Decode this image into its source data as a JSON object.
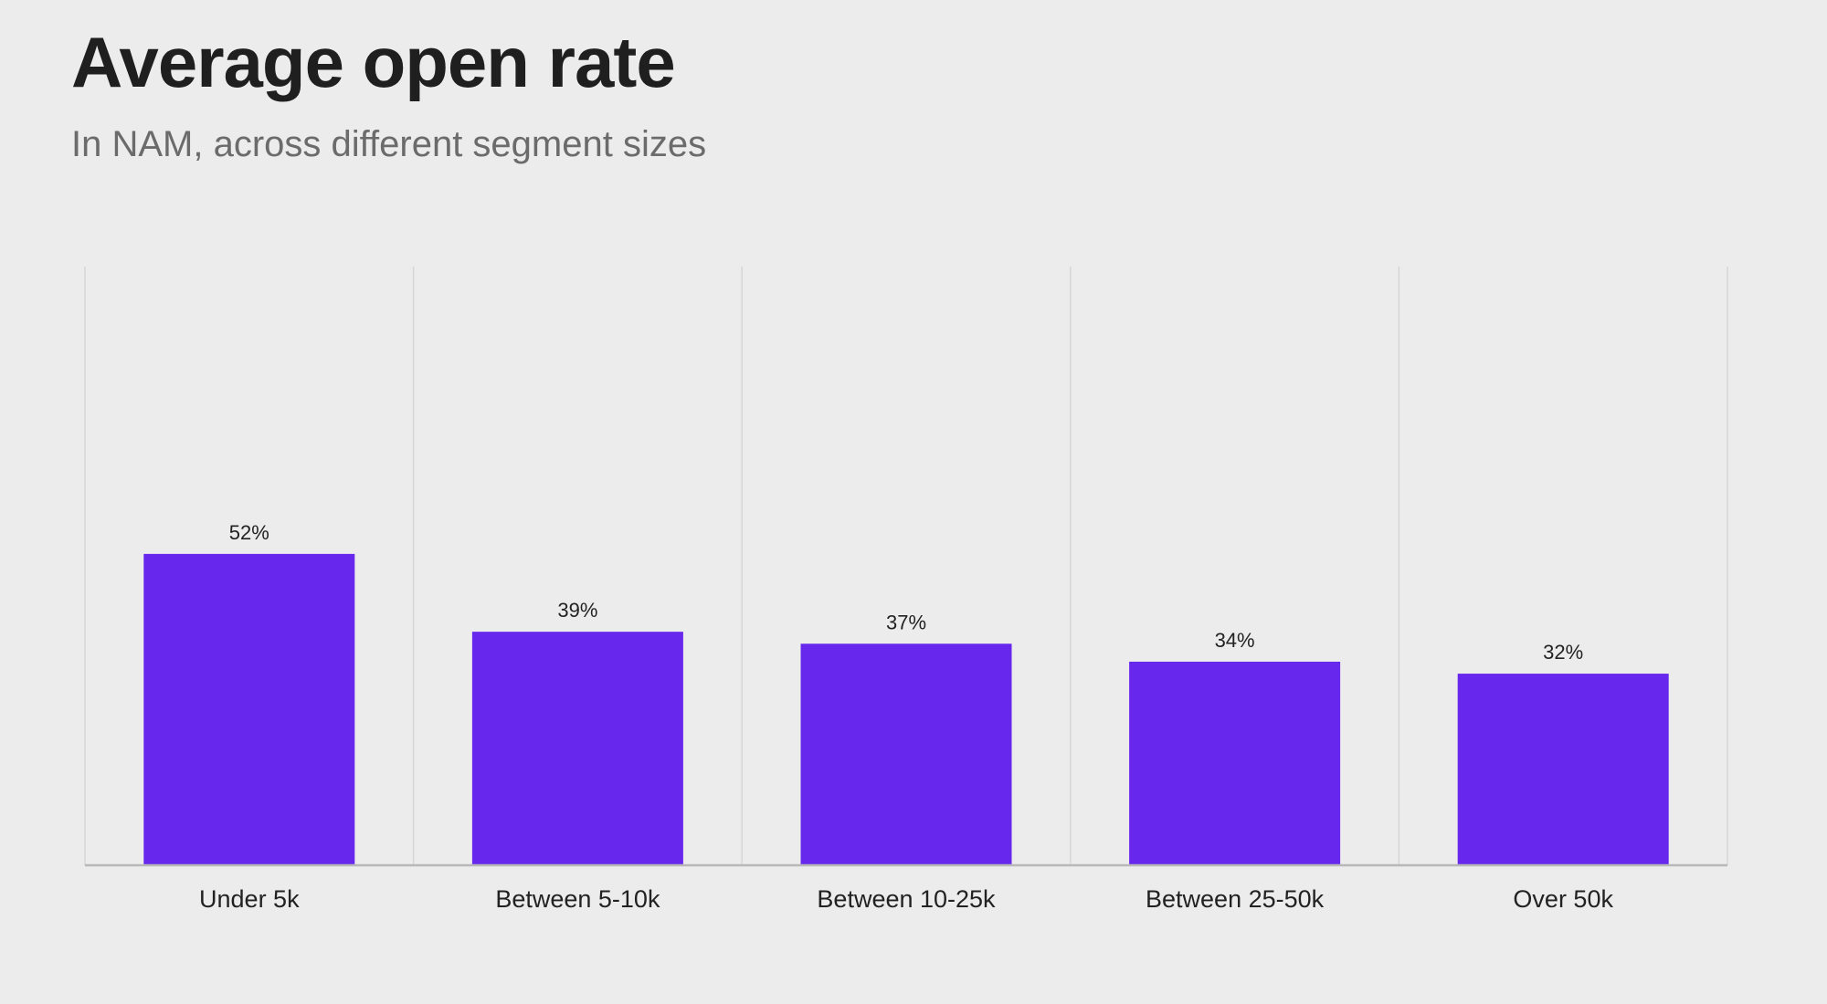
{
  "title": "Average open rate",
  "subtitle": "In NAM, across different segment sizes",
  "colors": {
    "background": "#ececec",
    "bar": "#6727ec",
    "grid": "#d6d6d6",
    "axis": "#b8b8b8",
    "text": "#222222"
  },
  "chart_data": {
    "type": "bar",
    "categories": [
      "Under 5k",
      "Between 5-10k",
      "Between 10-25k",
      "Between 25-50k",
      "Over 50k"
    ],
    "values": [
      52,
      39,
      37,
      34,
      32
    ],
    "value_labels": [
      "52%",
      "39%",
      "37%",
      "34%",
      "32%"
    ],
    "ylim": [
      0,
      100
    ],
    "grid": "vertical separators between categories",
    "legend": "none"
  }
}
